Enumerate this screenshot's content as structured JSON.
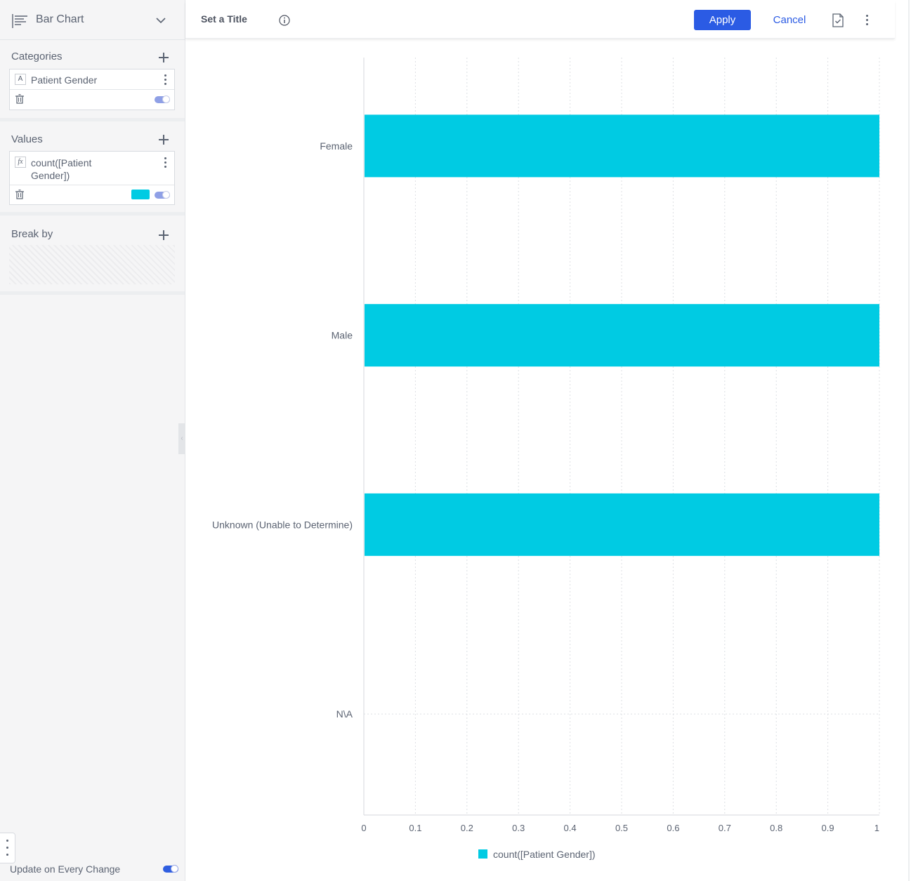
{
  "sidebar": {
    "chart_type": "Bar Chart",
    "categories": {
      "title": "Categories",
      "field": {
        "type_glyph": "A",
        "name": "Patient Gender"
      }
    },
    "values": {
      "title": "Values",
      "field": {
        "type_glyph": "fx",
        "name_line1": "count([Patient",
        "name_line2": "Gender])",
        "color": "#00cbe3"
      }
    },
    "break_by": {
      "title": "Break by"
    },
    "update_label": "Update on Every Change"
  },
  "header": {
    "title": "Set a Title",
    "apply": "Apply",
    "cancel": "Cancel"
  },
  "chart_data": {
    "type": "bar",
    "orientation": "horizontal",
    "categories": [
      "Female",
      "Male",
      "Unknown (Unable to Determine)",
      "N\\A"
    ],
    "series": [
      {
        "name": "count([Patient Gender])",
        "values": [
          1,
          1,
          1,
          0
        ],
        "color": "#00cbe3"
      }
    ],
    "xlim": [
      0,
      1
    ],
    "x_ticks": [
      "0",
      "0.1",
      "0.2",
      "0.3",
      "0.4",
      "0.5",
      "0.6",
      "0.7",
      "0.8",
      "0.9",
      "1"
    ],
    "grid": true,
    "legend": "bottom"
  }
}
